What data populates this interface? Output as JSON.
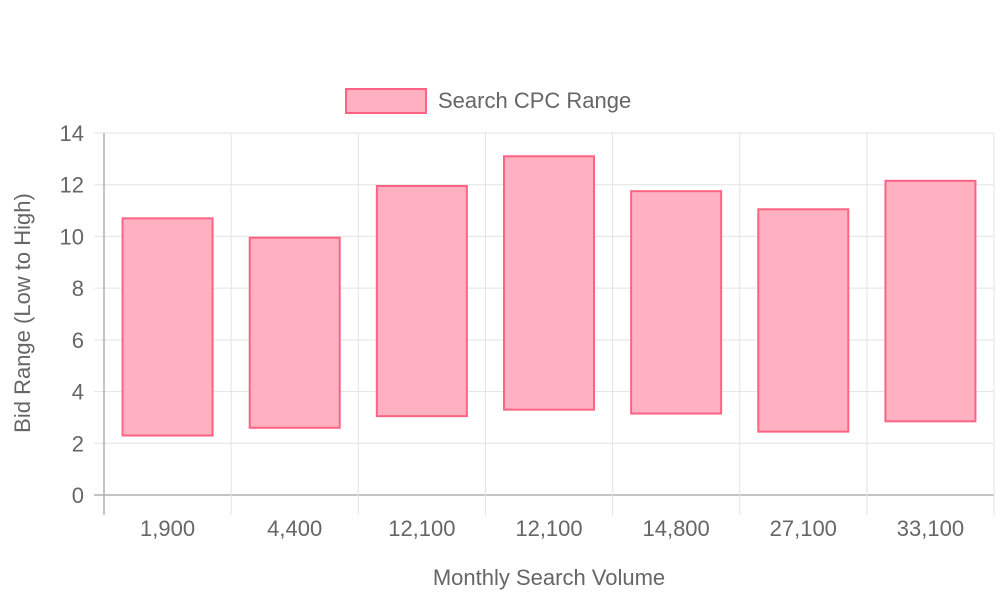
{
  "chart_data": {
    "type": "bar",
    "subtype": "floating-range",
    "categories": [
      "1,900",
      "4,400",
      "12,100",
      "12,100",
      "14,800",
      "27,100",
      "33,100"
    ],
    "series": [
      {
        "name": "Search CPC Range",
        "ranges": [
          [
            2.3,
            10.7
          ],
          [
            2.6,
            9.95
          ],
          [
            3.05,
            11.95
          ],
          [
            3.3,
            13.1
          ],
          [
            3.15,
            11.75
          ],
          [
            2.45,
            11.05
          ],
          [
            2.85,
            12.15
          ]
        ],
        "color": "#ff6384",
        "fill": "#ffb1c1"
      }
    ],
    "title": "",
    "xlabel": "Monthly Search Volume",
    "ylabel": "Bid Range (Low to High)",
    "ylim": [
      0,
      14
    ],
    "yticks": [
      0,
      2,
      4,
      6,
      8,
      10,
      12,
      14
    ],
    "grid": true,
    "legend_position": "top"
  }
}
